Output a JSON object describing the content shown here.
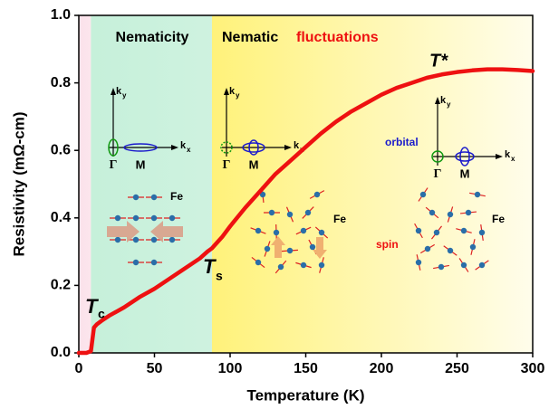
{
  "chart_data": {
    "type": "line",
    "xlabel": "Temperature (K)",
    "ylabel": "Resistivity (mΩ-cm)",
    "xlim": [
      0,
      300
    ],
    "ylim": [
      0,
      1.0
    ],
    "xticks": [
      0,
      50,
      100,
      150,
      200,
      250,
      300
    ],
    "yticks": [
      {
        "value": 0,
        "label": "0.0"
      },
      0.2,
      0.4,
      0.6,
      0.8,
      {
        "value": 1.0,
        "label": "1.0"
      }
    ],
    "x": [
      0,
      5,
      8,
      9,
      10,
      12,
      15,
      20,
      30,
      40,
      50,
      60,
      70,
      80,
      85,
      88,
      90,
      95,
      100,
      110,
      120,
      130,
      140,
      150,
      160,
      170,
      180,
      190,
      200,
      210,
      220,
      230,
      240,
      250,
      260,
      270,
      280,
      290,
      300
    ],
    "values": [
      0,
      0,
      0.005,
      0.04,
      0.075,
      0.085,
      0.095,
      0.11,
      0.135,
      0.165,
      0.19,
      0.22,
      0.25,
      0.28,
      0.3,
      0.31,
      0.32,
      0.345,
      0.375,
      0.43,
      0.48,
      0.53,
      0.57,
      0.61,
      0.65,
      0.685,
      0.715,
      0.74,
      0.765,
      0.785,
      0.8,
      0.815,
      0.825,
      0.832,
      0.837,
      0.84,
      0.84,
      0.838,
      0.835
    ],
    "color": "#ee1111",
    "regions": [
      {
        "range": [
          0,
          8
        ],
        "color": "#fbe1ea"
      },
      {
        "range": [
          8,
          88
        ],
        "color": "#c6f0da"
      },
      {
        "range": [
          88,
          300
        ],
        "color": "#fff27a"
      }
    ],
    "annotations": {
      "nematicity": "Nematicity",
      "nematic": "Nematic",
      "fluctuations": "fluctuations",
      "t_star": "T*",
      "tc": "T",
      "tc_sub": "c",
      "ts": "T",
      "ts_sub": "s",
      "orbital": "orbital",
      "spin": "spin"
    },
    "insets": [
      {
        "k": "k",
        "ky_sub": "y",
        "kx_sub": "x",
        "gamma": "Γ",
        "m": "M"
      },
      {
        "k": "k",
        "ky_sub": "y",
        "kx_sub": "x",
        "gamma": "Γ",
        "m": "M"
      },
      {
        "k": "k",
        "ky_sub": "y",
        "kx_sub": "x",
        "gamma": "Γ",
        "m": "M"
      }
    ],
    "spin_panels": [
      {
        "label": "Fe"
      },
      {
        "label": "Fe"
      },
      {
        "label": "Fe"
      }
    ]
  }
}
